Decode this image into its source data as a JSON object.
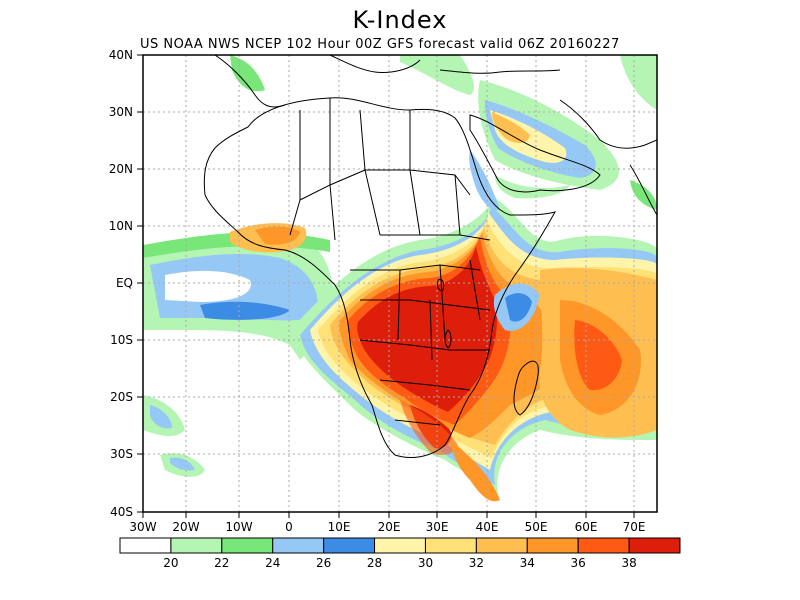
{
  "title": "K-Index",
  "subtitle": "US NOAA NWS NCEP 102 Hour 00Z GFS forecast valid 06Z 20160227",
  "lat_labels": [
    "40N",
    "30N",
    "20N",
    "10N",
    "EQ",
    "10S",
    "20S",
    "30S",
    "40S"
  ],
  "lon_labels": [
    "30W",
    "20W",
    "10W",
    "0",
    "10E",
    "20E",
    "30E",
    "40E",
    "50E",
    "60E",
    "70E"
  ],
  "colorbar": {
    "colors": [
      "#ffffff",
      "#b4f5b4",
      "#78e678",
      "#96c8f5",
      "#3c8ce6",
      "#fff5aa",
      "#ffe178",
      "#ffbe50",
      "#ff9628",
      "#ff5a14",
      "#dc1e0a"
    ],
    "labels": [
      "20",
      "22",
      "24",
      "26",
      "28",
      "30",
      "32",
      "34",
      "36",
      "38"
    ]
  }
}
